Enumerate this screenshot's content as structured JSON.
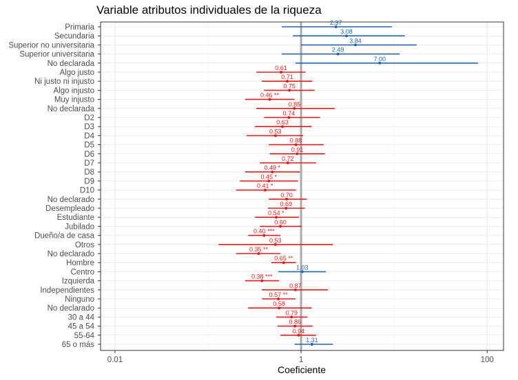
{
  "chart_data": {
    "type": "forest",
    "title": "Variable atributos individuales de la riqueza",
    "xlabel": "Coeficiente",
    "ylabel": "",
    "x_scale": "log10",
    "xlim": [
      0.007,
      150
    ],
    "x_ticks": [
      {
        "value": 0.01,
        "label": "0.01"
      },
      {
        "value": 1,
        "label": "1"
      },
      {
        "value": 100,
        "label": "100"
      }
    ],
    "reference_line": 1,
    "colors": {
      "positive": "#2166ac",
      "negative": "#e31a1c",
      "reference": "#aaaaaa",
      "grid": "#ebebeb",
      "grid_minor": "#f4f4f4",
      "border": "#333333"
    },
    "rows": [
      {
        "label": "Primaria",
        "value": 2.37,
        "lo": 0.62,
        "hi": 9.5,
        "text": "2.37",
        "color": "positive"
      },
      {
        "label": "Secundaria",
        "value": 3.08,
        "lo": 0.82,
        "hi": 13.0,
        "text": "3.08",
        "color": "positive"
      },
      {
        "label": "Superior no universitaria",
        "value": 3.84,
        "lo": 1.0,
        "hi": 17.5,
        "text": "3.84",
        "color": "positive"
      },
      {
        "label": "Superior universitaria",
        "value": 2.49,
        "lo": 0.62,
        "hi": 11.5,
        "text": "2.49",
        "color": "positive"
      },
      {
        "label": "No declarada",
        "value": 7.0,
        "lo": 0.87,
        "hi": 80.0,
        "text": "7.00",
        "color": "positive"
      },
      {
        "label": "Algo justo",
        "value": 0.61,
        "lo": 0.33,
        "hi": 1.12,
        "text": "0.61",
        "color": "negative"
      },
      {
        "label": "Ni justo ni injusto",
        "value": 0.71,
        "lo": 0.38,
        "hi": 1.32,
        "text": "0.71",
        "color": "negative"
      },
      {
        "label": "Algo injusto",
        "value": 0.75,
        "lo": 0.4,
        "hi": 1.4,
        "text": "0.75",
        "color": "negative"
      },
      {
        "label": "Muy injusto",
        "value": 0.46,
        "lo": 0.25,
        "hi": 0.85,
        "text": "0.46 **",
        "color": "negative"
      },
      {
        "label": "No declarada",
        "value": 0.85,
        "lo": 0.33,
        "hi": 2.3,
        "text": "0.85",
        "color": "negative"
      },
      {
        "label": "D2",
        "value": 0.74,
        "lo": 0.4,
        "hi": 1.6,
        "text": "0.74",
        "color": "negative"
      },
      {
        "label": "D3",
        "value": 0.63,
        "lo": 0.32,
        "hi": 1.3,
        "text": "0.63",
        "color": "negative"
      },
      {
        "label": "D4",
        "value": 0.53,
        "lo": 0.26,
        "hi": 1.05,
        "text": "0.53",
        "color": "negative"
      },
      {
        "label": "D5",
        "value": 0.88,
        "lo": 0.45,
        "hi": 1.75,
        "text": "0.88",
        "color": "negative"
      },
      {
        "label": "D6",
        "value": 0.91,
        "lo": 0.46,
        "hi": 1.8,
        "text": "0.91",
        "color": "negative"
      },
      {
        "label": "D7",
        "value": 0.72,
        "lo": 0.36,
        "hi": 1.45,
        "text": "0.72",
        "color": "negative"
      },
      {
        "label": "D8",
        "value": 0.49,
        "lo": 0.25,
        "hi": 0.97,
        "text": "0.49 *",
        "color": "negative"
      },
      {
        "label": "D9",
        "value": 0.45,
        "lo": 0.22,
        "hi": 0.93,
        "text": "0.45 *",
        "color": "negative"
      },
      {
        "label": "D10",
        "value": 0.41,
        "lo": 0.2,
        "hi": 0.88,
        "text": "0.41 *",
        "color": "negative"
      },
      {
        "label": "No declarado",
        "value": 0.7,
        "lo": 0.45,
        "hi": 1.15,
        "text": "0.70",
        "color": "negative"
      },
      {
        "label": "Desempleado",
        "value": 0.69,
        "lo": 0.44,
        "hi": 1.1,
        "text": "0.69",
        "color": "negative"
      },
      {
        "label": "Estudiante",
        "value": 0.54,
        "lo": 0.32,
        "hi": 0.95,
        "text": "0.54 *",
        "color": "negative"
      },
      {
        "label": "Jubilado",
        "value": 0.6,
        "lo": 0.36,
        "hi": 1.02,
        "text": "0.60",
        "color": "negative"
      },
      {
        "label": "Dueño/a de casa",
        "value": 0.4,
        "lo": 0.27,
        "hi": 0.6,
        "text": "0.40 ***",
        "color": "negative"
      },
      {
        "label": "Otros",
        "value": 0.53,
        "lo": 0.13,
        "hi": 2.2,
        "text": "0.53",
        "color": "negative"
      },
      {
        "label": "No declarado",
        "value": 0.35,
        "lo": 0.2,
        "hi": 0.6,
        "text": "0.35 **",
        "color": "negative"
      },
      {
        "label": "Hombre",
        "value": 0.65,
        "lo": 0.48,
        "hi": 0.88,
        "text": "0.65 **",
        "color": "negative"
      },
      {
        "label": "Centro",
        "value": 1.03,
        "lo": 0.57,
        "hi": 1.85,
        "text": "1.03",
        "color": "positive"
      },
      {
        "label": "Izquierda",
        "value": 0.38,
        "lo": 0.25,
        "hi": 0.58,
        "text": "0.38 ***",
        "color": "negative"
      },
      {
        "label": "Independientes",
        "value": 0.87,
        "lo": 0.38,
        "hi": 1.95,
        "text": "0.87",
        "color": "negative"
      },
      {
        "label": "Ninguno",
        "value": 0.57,
        "lo": 0.38,
        "hi": 0.87,
        "text": "0.57 **",
        "color": "negative"
      },
      {
        "label": "No declarado",
        "value": 0.58,
        "lo": 0.27,
        "hi": 1.3,
        "text": "0.58",
        "color": "negative"
      },
      {
        "label": "30 a 44",
        "value": 0.79,
        "lo": 0.54,
        "hi": 1.17,
        "text": "0.79",
        "color": "negative"
      },
      {
        "label": "45 a 54",
        "value": 0.86,
        "lo": 0.56,
        "hi": 1.33,
        "text": "0.86",
        "color": "negative"
      },
      {
        "label": "55-64",
        "value": 0.94,
        "lo": 0.6,
        "hi": 1.45,
        "text": "0.94",
        "color": "negative"
      },
      {
        "label": "65 o más",
        "value": 1.31,
        "lo": 0.85,
        "hi": 2.2,
        "text": "1.31",
        "color": "positive"
      }
    ]
  }
}
